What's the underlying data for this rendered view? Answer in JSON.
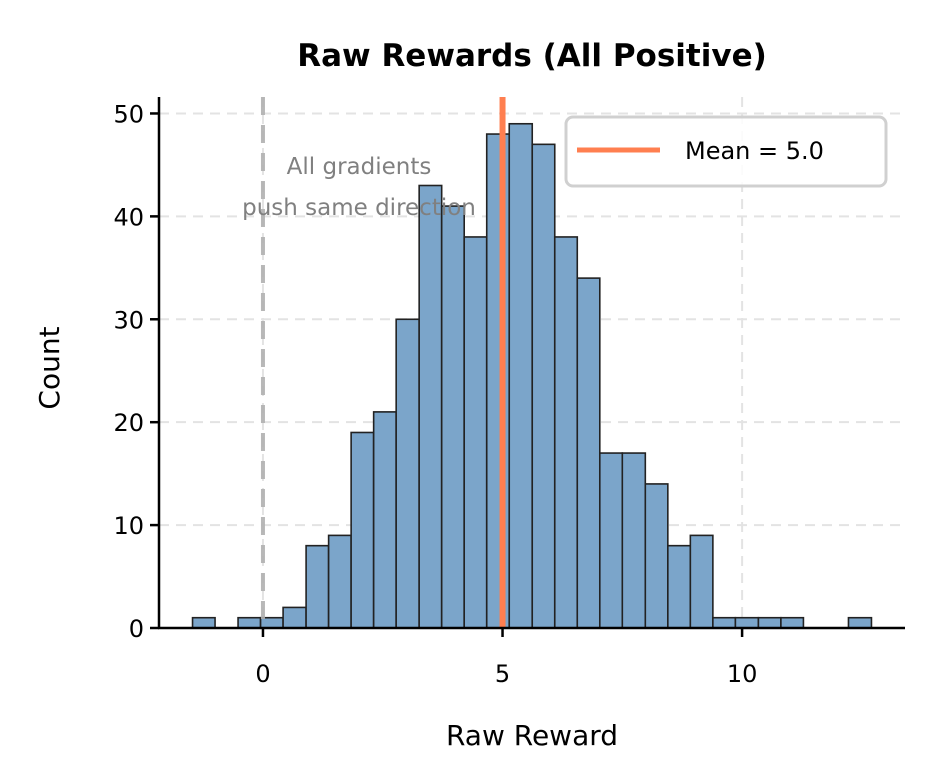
{
  "chart_data": {
    "type": "bar",
    "subtype": "histogram",
    "title": "Raw Rewards (All Positive)",
    "xlabel": "Raw Reward",
    "ylabel": "Count",
    "xlim": [
      -2.17,
      13.4
    ],
    "ylim": [
      0,
      51.6
    ],
    "xticks": [
      0,
      5,
      10
    ],
    "xtick_labels": [
      "0",
      "5",
      "10"
    ],
    "yticks": [
      0,
      10,
      20,
      30,
      40,
      50
    ],
    "ytick_labels": [
      "0",
      "10",
      "20",
      "30",
      "40",
      "50"
    ],
    "grid": true,
    "grid_style": "dashed",
    "bin_start": -1.47,
    "bin_width": 0.472,
    "bin_edges": [
      -1.47,
      -1.0,
      -0.52,
      -0.05,
      0.42,
      0.9,
      1.37,
      1.84,
      2.31,
      2.78,
      3.26,
      3.73,
      4.2,
      4.67,
      5.14,
      5.62,
      6.09,
      6.56,
      7.03,
      7.5,
      7.98,
      8.45,
      8.92,
      9.39,
      9.86,
      10.34,
      10.81,
      11.28,
      11.75,
      12.22,
      12.7
    ],
    "values": [
      1,
      0,
      1,
      1,
      2,
      8,
      9,
      19,
      21,
      30,
      43,
      41,
      38,
      48,
      49,
      47,
      38,
      34,
      17,
      17,
      14,
      8,
      9,
      1,
      1,
      1,
      1,
      0,
      0,
      1
    ],
    "total_count": 500,
    "series": [
      {
        "name": "Raw Rewards",
        "type": "histogram",
        "color": "#7BA5CA",
        "edgecolor": "#1a1a1a"
      }
    ],
    "reference_lines": [
      {
        "name": "Mean = 5.0",
        "x": 5.0,
        "color": "#FF7F50",
        "style": "solid",
        "in_legend": true
      },
      {
        "name": "zero",
        "x": 0,
        "color": "#b0b0b0",
        "style": "dashed",
        "in_legend": false
      }
    ],
    "annotations": [
      {
        "text_lines": [
          "All gradients",
          "push same direction"
        ],
        "x": 2.2,
        "y": 43,
        "color": "#808080"
      }
    ],
    "legend": {
      "position": "upper right",
      "entries": [
        {
          "label": "Mean = 5.0",
          "color": "#FF7F50"
        }
      ]
    }
  },
  "labels": {
    "title": "Raw Rewards (All Positive)",
    "xlabel": "Raw Reward",
    "ylabel": "Count",
    "legend_mean": "Mean = 5.0",
    "annot_line1": "All gradients",
    "annot_line2": "push same direction"
  },
  "colors": {
    "bar_fill": "#7BA5CA",
    "bar_edge": "#222222",
    "mean_line": "#FF7F50",
    "zero_line": "#b3b3b3",
    "grid": "#e3e3e3",
    "legend_border": "#d0d0d0"
  }
}
